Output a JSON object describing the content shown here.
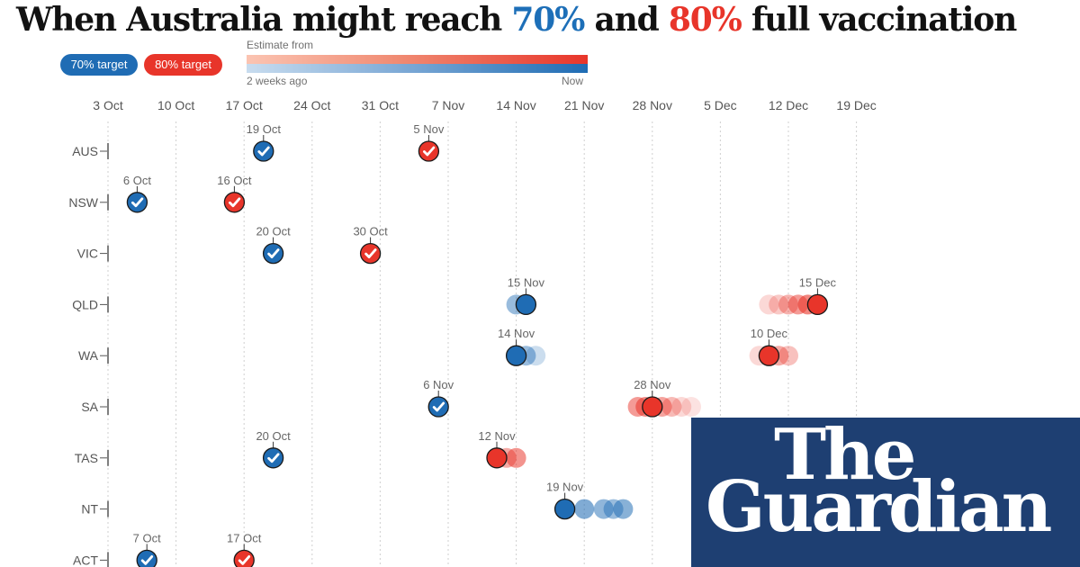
{
  "header": {
    "title_parts": [
      "When Australia might reach ",
      "70%",
      " and ",
      "80%",
      " full vaccination"
    ]
  },
  "legend": {
    "target70_label": "70% target",
    "target80_label": "80% target",
    "gradient_title": "Estimate from",
    "gradient_start": "2 weeks ago",
    "gradient_end": "Now"
  },
  "colors": {
    "target70": "#1f6cb4",
    "target80": "#e8352a",
    "text": "#121212",
    "axis_text": "#707070",
    "guardian_bg": "#1e3f72"
  },
  "branding": {
    "line1": "The",
    "line2": "Guardian"
  },
  "chart_data": {
    "type": "scatter",
    "title": "When Australia might reach 70% and 80% full vaccination",
    "xlabel": "",
    "ylabel": "",
    "x_axis": {
      "type": "date",
      "range": [
        "2021-10-03",
        "2021-12-22"
      ],
      "ticks": [
        "3 Oct",
        "10 Oct",
        "17 Oct",
        "24 Oct",
        "31 Oct",
        "7 Nov",
        "14 Nov",
        "21 Nov",
        "28 Nov",
        "5 Dec",
        "12 Dec",
        "19 Dec"
      ],
      "tick_days": [
        0,
        7,
        14,
        21,
        28,
        35,
        42,
        49,
        56,
        63,
        70,
        77
      ],
      "grid": true
    },
    "categories": [
      "AUS",
      "NSW",
      "VIC",
      "QLD",
      "WA",
      "SA",
      "TAS",
      "NT",
      "ACT"
    ],
    "legend": [
      "70% target",
      "80% target"
    ],
    "series": [
      {
        "name": "70% target",
        "color": "#1f6cb4",
        "points": [
          {
            "state": "AUS",
            "label": "19 Oct",
            "day": 16,
            "reached": true,
            "history": []
          },
          {
            "state": "NSW",
            "label": "6 Oct",
            "day": 3,
            "reached": true,
            "history": []
          },
          {
            "state": "VIC",
            "label": "20 Oct",
            "day": 17,
            "reached": true,
            "history": []
          },
          {
            "state": "QLD",
            "label": "15 Nov",
            "day": 43,
            "reached": false,
            "history": [
              {
                "day": 42,
                "age": 0.5
              }
            ]
          },
          {
            "state": "WA",
            "label": "14 Nov",
            "day": 42,
            "reached": false,
            "history": [
              {
                "day": 43,
                "age": 0.5
              },
              {
                "day": 44,
                "age": 0.8
              }
            ]
          },
          {
            "state": "SA",
            "label": "6 Nov",
            "day": 34,
            "reached": true,
            "history": []
          },
          {
            "state": "TAS",
            "label": "20 Oct",
            "day": 17,
            "reached": true,
            "history": []
          },
          {
            "state": "NT",
            "label": "19 Nov",
            "day": 47,
            "reached": false,
            "history": [
              {
                "day": 49,
                "age": 0.35
              },
              {
                "day": 51,
                "age": 0.45
              },
              {
                "day": 52,
                "age": 0.5
              },
              {
                "day": 53,
                "age": 0.4
              }
            ]
          },
          {
            "state": "ACT",
            "label": "7 Oct",
            "day": 4,
            "reached": true,
            "history": []
          }
        ]
      },
      {
        "name": "80% target",
        "color": "#e8352a",
        "points": [
          {
            "state": "AUS",
            "label": "5 Nov",
            "day": 33,
            "reached": true,
            "history": []
          },
          {
            "state": "NSW",
            "label": "16 Oct",
            "day": 13,
            "reached": true,
            "history": []
          },
          {
            "state": "VIC",
            "label": "30 Oct",
            "day": 27,
            "reached": true,
            "history": []
          },
          {
            "state": "QLD",
            "label": "15 Dec",
            "day": 73,
            "reached": false,
            "history": [
              {
                "day": 68,
                "age": 0.85
              },
              {
                "day": 69,
                "age": 0.75
              },
              {
                "day": 70,
                "age": 0.6
              },
              {
                "day": 71,
                "age": 0.45
              },
              {
                "day": 72,
                "age": 0.3
              }
            ]
          },
          {
            "state": "WA",
            "label": "10 Dec",
            "day": 68,
            "reached": false,
            "history": [
              {
                "day": 67,
                "age": 0.85
              },
              {
                "day": 69,
                "age": 0.55
              },
              {
                "day": 70,
                "age": 0.7
              }
            ]
          },
          {
            "state": "SA",
            "label": "28 Nov",
            "day": 56,
            "reached": false,
            "history": [
              {
                "day": 54.5,
                "age": 0.45
              },
              {
                "day": 55.3,
                "age": 0.35
              },
              {
                "day": 57,
                "age": 0.5
              },
              {
                "day": 58,
                "age": 0.65
              },
              {
                "day": 59,
                "age": 0.85
              },
              {
                "day": 60,
                "age": 0.92
              }
            ]
          },
          {
            "state": "TAS",
            "label": "12 Nov",
            "day": 40,
            "reached": false,
            "history": [
              {
                "day": 41,
                "age": 0.55
              },
              {
                "day": 42,
                "age": 0.4
              }
            ]
          },
          {
            "state": "NT",
            "label": "",
            "day": null,
            "reached": false,
            "history": []
          },
          {
            "state": "ACT",
            "label": "17 Oct",
            "day": 14,
            "reached": true,
            "history": []
          }
        ]
      }
    ]
  }
}
